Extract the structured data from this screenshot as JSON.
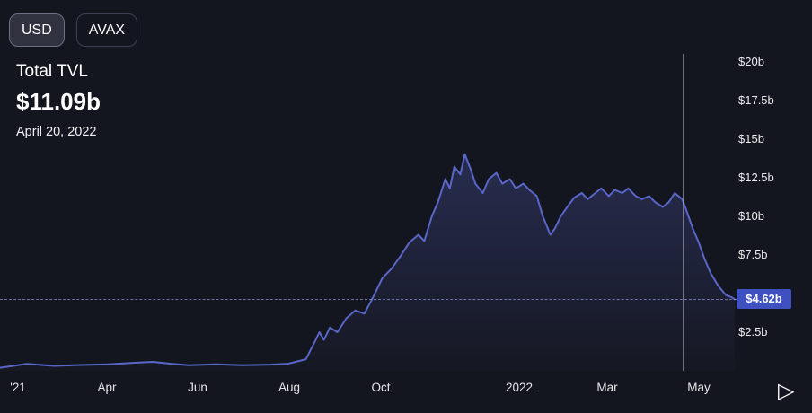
{
  "toggles": {
    "usd": "USD",
    "avax": "AVAX"
  },
  "header": {
    "title": "Total TVL",
    "value": "$11.09b",
    "date": "April 20, 2022"
  },
  "icons": {
    "play": "▷"
  },
  "colors": {
    "background": "#14161f",
    "line": "#5a66c9",
    "area_top_opacity": "0.28",
    "area_bottom_opacity": "0.02",
    "badge_bg": "#3f51c1",
    "crosshair": "rgba(195,200,210,0.5)"
  },
  "chart_data": {
    "type": "area",
    "title": "Total TVL (USD)",
    "unit": "$b",
    "grid": false,
    "legend": "none",
    "x_domain": [
      "2021-01-20",
      "2022-05-25"
    ],
    "ylim": [
      0,
      20.5
    ],
    "y_ticks": [
      {
        "label": "$20b",
        "value": 20
      },
      {
        "label": "$17.5b",
        "value": 17.5
      },
      {
        "label": "$15b",
        "value": 15
      },
      {
        "label": "$12.5b",
        "value": 12.5
      },
      {
        "label": "$10b",
        "value": 10
      },
      {
        "label": "$7.5b",
        "value": 7.5
      },
      {
        "label": "$2.5b",
        "value": 2.5
      }
    ],
    "x_ticks": [
      {
        "label": "'21",
        "date": "2021-02-01"
      },
      {
        "label": "Apr",
        "date": "2021-04-01"
      },
      {
        "label": "Jun",
        "date": "2021-06-01"
      },
      {
        "label": "Aug",
        "date": "2021-08-01"
      },
      {
        "label": "Oct",
        "date": "2021-10-01"
      },
      {
        "label": "2022",
        "date": "2022-01-01"
      },
      {
        "label": "Mar",
        "date": "2022-03-01"
      },
      {
        "label": "May",
        "date": "2022-05-01"
      }
    ],
    "current": {
      "label": "$4.62b",
      "value": 4.62
    },
    "crosshair": {
      "date": "2022-04-20",
      "value": 11.09
    },
    "points": [
      [
        "2021-01-20",
        0.2
      ],
      [
        "2021-02-07",
        0.45
      ],
      [
        "2021-02-25",
        0.32
      ],
      [
        "2021-03-15",
        0.38
      ],
      [
        "2021-04-02",
        0.42
      ],
      [
        "2021-04-20",
        0.52
      ],
      [
        "2021-05-02",
        0.58
      ],
      [
        "2021-05-14",
        0.46
      ],
      [
        "2021-05-26",
        0.36
      ],
      [
        "2021-06-13",
        0.42
      ],
      [
        "2021-07-01",
        0.36
      ],
      [
        "2021-07-19",
        0.4
      ],
      [
        "2021-07-31",
        0.46
      ],
      [
        "2021-08-12",
        0.75
      ],
      [
        "2021-08-18",
        1.9
      ],
      [
        "2021-08-21",
        2.5
      ],
      [
        "2021-08-24",
        2.0
      ],
      [
        "2021-08-28",
        2.8
      ],
      [
        "2021-09-02",
        2.5
      ],
      [
        "2021-09-08",
        3.4
      ],
      [
        "2021-09-14",
        3.9
      ],
      [
        "2021-09-20",
        3.7
      ],
      [
        "2021-09-26",
        4.8
      ],
      [
        "2021-10-02",
        6.0
      ],
      [
        "2021-10-08",
        6.6
      ],
      [
        "2021-10-14",
        7.4
      ],
      [
        "2021-10-20",
        8.3
      ],
      [
        "2021-10-26",
        8.8
      ],
      [
        "2021-10-30",
        8.4
      ],
      [
        "2021-11-04",
        10.0
      ],
      [
        "2021-11-08",
        10.9
      ],
      [
        "2021-11-13",
        12.4
      ],
      [
        "2021-11-16",
        11.8
      ],
      [
        "2021-11-19",
        13.2
      ],
      [
        "2021-11-23",
        12.7
      ],
      [
        "2021-11-26",
        14.0
      ],
      [
        "2021-11-30",
        13.0
      ],
      [
        "2021-12-03",
        12.1
      ],
      [
        "2021-12-08",
        11.5
      ],
      [
        "2021-12-12",
        12.4
      ],
      [
        "2021-12-17",
        12.8
      ],
      [
        "2021-12-21",
        12.1
      ],
      [
        "2021-12-26",
        12.4
      ],
      [
        "2021-12-30",
        11.8
      ],
      [
        "2022-01-04",
        12.1
      ],
      [
        "2022-01-08",
        11.7
      ],
      [
        "2022-01-13",
        11.3
      ],
      [
        "2022-01-17",
        10.0
      ],
      [
        "2022-01-22",
        8.8
      ],
      [
        "2022-01-25",
        9.2
      ],
      [
        "2022-01-29",
        10.0
      ],
      [
        "2022-02-03",
        10.7
      ],
      [
        "2022-02-07",
        11.2
      ],
      [
        "2022-02-12",
        11.5
      ],
      [
        "2022-02-16",
        11.1
      ],
      [
        "2022-02-21",
        11.5
      ],
      [
        "2022-02-25",
        11.8
      ],
      [
        "2022-03-02",
        11.3
      ],
      [
        "2022-03-06",
        11.7
      ],
      [
        "2022-03-11",
        11.5
      ],
      [
        "2022-03-15",
        11.8
      ],
      [
        "2022-03-20",
        11.3
      ],
      [
        "2022-03-24",
        11.1
      ],
      [
        "2022-03-29",
        11.3
      ],
      [
        "2022-04-02",
        10.9
      ],
      [
        "2022-04-07",
        10.6
      ],
      [
        "2022-04-11",
        10.9
      ],
      [
        "2022-04-15",
        11.5
      ],
      [
        "2022-04-20",
        11.09
      ],
      [
        "2022-04-23",
        10.3
      ],
      [
        "2022-04-27",
        9.2
      ],
      [
        "2022-05-01",
        8.3
      ],
      [
        "2022-05-05",
        7.2
      ],
      [
        "2022-05-09",
        6.3
      ],
      [
        "2022-05-14",
        5.5
      ],
      [
        "2022-05-19",
        4.9
      ],
      [
        "2022-05-23",
        4.75
      ],
      [
        "2022-05-25",
        4.62
      ]
    ]
  }
}
